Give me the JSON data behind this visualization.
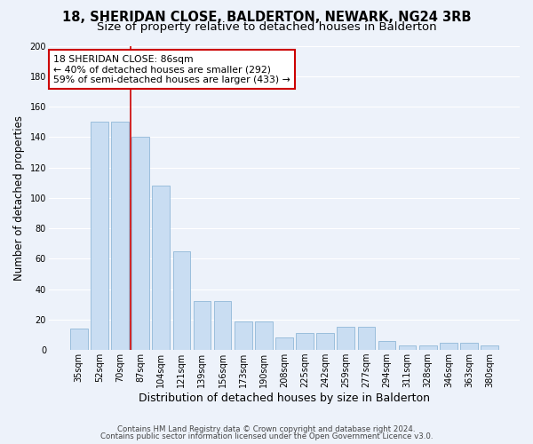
{
  "title": "18, SHERIDAN CLOSE, BALDERTON, NEWARK, NG24 3RB",
  "subtitle": "Size of property relative to detached houses in Balderton",
  "xlabel": "Distribution of detached houses by size in Balderton",
  "ylabel": "Number of detached properties",
  "categories": [
    "35sqm",
    "52sqm",
    "70sqm",
    "87sqm",
    "104sqm",
    "121sqm",
    "139sqm",
    "156sqm",
    "173sqm",
    "190sqm",
    "208sqm",
    "225sqm",
    "242sqm",
    "259sqm",
    "277sqm",
    "294sqm",
    "311sqm",
    "328sqm",
    "346sqm",
    "363sqm",
    "380sqm"
  ],
  "values": [
    14,
    150,
    150,
    140,
    108,
    65,
    32,
    32,
    19,
    19,
    8,
    11,
    11,
    15,
    15,
    6,
    3,
    3,
    5,
    5,
    3
  ],
  "bar_color": "#c9ddf2",
  "bar_edge_color": "#90b8d8",
  "vline_x": 2.5,
  "vline_color": "#cc0000",
  "annotation_text": "18 SHERIDAN CLOSE: 86sqm\n← 40% of detached houses are smaller (292)\n59% of semi-detached houses are larger (433) →",
  "annotation_box_color": "#ffffff",
  "annotation_box_edge": "#cc0000",
  "ylim": [
    0,
    200
  ],
  "yticks": [
    0,
    20,
    40,
    60,
    80,
    100,
    120,
    140,
    160,
    180,
    200
  ],
  "footer1": "Contains HM Land Registry data © Crown copyright and database right 2024.",
  "footer2": "Contains public sector information licensed under the Open Government Licence v3.0.",
  "background_color": "#edf2fa",
  "grid_color": "#ffffff",
  "title_fontsize": 10.5,
  "subtitle_fontsize": 9.5,
  "tick_fontsize": 7,
  "ylabel_fontsize": 8.5,
  "xlabel_fontsize": 9,
  "annotation_fontsize": 7.8,
  "footer_fontsize": 6.2
}
